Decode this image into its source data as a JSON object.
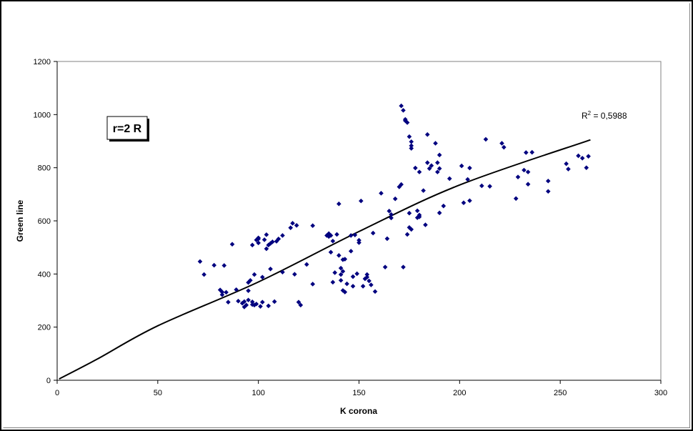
{
  "chart_data": {
    "type": "scatter",
    "title": "",
    "xlabel": "K corona",
    "ylabel": "Green line",
    "xlim": [
      0,
      300
    ],
    "ylim": [
      0,
      1200
    ],
    "xticks": [
      0,
      50,
      100,
      150,
      200,
      250,
      300
    ],
    "yticks": [
      0,
      200,
      400,
      600,
      800,
      1000,
      1200
    ],
    "xtick_labels": [
      "0",
      "50",
      "100",
      "150",
      "200",
      "250",
      "300"
    ],
    "ytick_labels": [
      "0",
      "200",
      "400",
      "600",
      "800",
      "1000",
      "1200"
    ],
    "grid": false,
    "annotation": "r=2 R",
    "trendline": {
      "type": "polynomial",
      "r2_label": "R",
      "r2_sup": "2",
      "r2_value": " = 0,5988",
      "points": [
        [
          1,
          5
        ],
        [
          20,
          80
        ],
        [
          50,
          205
        ],
        [
          100,
          370
        ],
        [
          150,
          560
        ],
        [
          200,
          735
        ],
        [
          265,
          905
        ]
      ]
    },
    "marker_color": "#00007f",
    "series": [
      {
        "points": [
          [
            71,
            447
          ],
          [
            73,
            398
          ],
          [
            78,
            433
          ],
          [
            83,
            432
          ],
          [
            81,
            340
          ],
          [
            82,
            322
          ],
          [
            82,
            332
          ],
          [
            84,
            331
          ],
          [
            85,
            294
          ],
          [
            87,
            512
          ],
          [
            89,
            341
          ],
          [
            90,
            298
          ],
          [
            92,
            290
          ],
          [
            93,
            296
          ],
          [
            93,
            276
          ],
          [
            94,
            283
          ],
          [
            95,
            337
          ],
          [
            95,
            302
          ],
          [
            95,
            368
          ],
          [
            96,
            376
          ],
          [
            97,
            285
          ],
          [
            97,
            295
          ],
          [
            97,
            509
          ],
          [
            98,
            283
          ],
          [
            98,
            398
          ],
          [
            99,
            287
          ],
          [
            99,
            528
          ],
          [
            100,
            517
          ],
          [
            100,
            536
          ],
          [
            100,
            532
          ],
          [
            101,
            278
          ],
          [
            102,
            294
          ],
          [
            102,
            388
          ],
          [
            103,
            529
          ],
          [
            104,
            548
          ],
          [
            104,
            495
          ],
          [
            105,
            509
          ],
          [
            105,
            280
          ],
          [
            106,
            419
          ],
          [
            106,
            515
          ],
          [
            107,
            521
          ],
          [
            108,
            296
          ],
          [
            109,
            523
          ],
          [
            110,
            532
          ],
          [
            112,
            407
          ],
          [
            112,
            545
          ],
          [
            116,
            574
          ],
          [
            117,
            591
          ],
          [
            118,
            399
          ],
          [
            119,
            583
          ],
          [
            120,
            294
          ],
          [
            121,
            283
          ],
          [
            124,
            436
          ],
          [
            127,
            362
          ],
          [
            127,
            582
          ],
          [
            134,
            545
          ],
          [
            135,
            552
          ],
          [
            135,
            541
          ],
          [
            136,
            482
          ],
          [
            136,
            545
          ],
          [
            137,
            524
          ],
          [
            137,
            369
          ],
          [
            138,
            405
          ],
          [
            139,
            549
          ],
          [
            140,
            664
          ],
          [
            140,
            470
          ],
          [
            141,
            376
          ],
          [
            141,
            398
          ],
          [
            141,
            422
          ],
          [
            142,
            410
          ],
          [
            142,
            454
          ],
          [
            142,
            338
          ],
          [
            143,
            332
          ],
          [
            143,
            456
          ],
          [
            144,
            363
          ],
          [
            146,
            545
          ],
          [
            146,
            486
          ],
          [
            147,
            390
          ],
          [
            147,
            354
          ],
          [
            148,
            547
          ],
          [
            149,
            401
          ],
          [
            150,
            518
          ],
          [
            150,
            527
          ],
          [
            151,
            675
          ],
          [
            152,
            354
          ],
          [
            153,
            382
          ],
          [
            154,
            398
          ],
          [
            154,
            388
          ],
          [
            155,
            374
          ],
          [
            156,
            359
          ],
          [
            157,
            554
          ],
          [
            158,
            334
          ],
          [
            161,
            704
          ],
          [
            163,
            426
          ],
          [
            164,
            533
          ],
          [
            165,
            637
          ],
          [
            166,
            611
          ],
          [
            166,
            624
          ],
          [
            168,
            683
          ],
          [
            170,
            728
          ],
          [
            171,
            737
          ],
          [
            171,
            1033
          ],
          [
            172,
            1016
          ],
          [
            172,
            426
          ],
          [
            173,
            982
          ],
          [
            173,
            977
          ],
          [
            174,
            970
          ],
          [
            174,
            549
          ],
          [
            175,
            575
          ],
          [
            175,
            629
          ],
          [
            175,
            917
          ],
          [
            176,
            568
          ],
          [
            176,
            898
          ],
          [
            176,
            883
          ],
          [
            176,
            873
          ],
          [
            178,
            799
          ],
          [
            179,
            612
          ],
          [
            179,
            638
          ],
          [
            180,
            615
          ],
          [
            180,
            622
          ],
          [
            180,
            784
          ],
          [
            182,
            714
          ],
          [
            183,
            585
          ],
          [
            184,
            925
          ],
          [
            184,
            819
          ],
          [
            185,
            797
          ],
          [
            186,
            808
          ],
          [
            188,
            892
          ],
          [
            189,
            819
          ],
          [
            189,
            784
          ],
          [
            190,
            848
          ],
          [
            190,
            630
          ],
          [
            190,
            797
          ],
          [
            192,
            656
          ],
          [
            195,
            759
          ],
          [
            201,
            807
          ],
          [
            202,
            668
          ],
          [
            204,
            756
          ],
          [
            205,
            676
          ],
          [
            205,
            799
          ],
          [
            211,
            732
          ],
          [
            213,
            907
          ],
          [
            215,
            730
          ],
          [
            221,
            892
          ],
          [
            222,
            877
          ],
          [
            228,
            684
          ],
          [
            229,
            765
          ],
          [
            232,
            791
          ],
          [
            233,
            857
          ],
          [
            234,
            784
          ],
          [
            234,
            738
          ],
          [
            236,
            858
          ],
          [
            244,
            750
          ],
          [
            244,
            711
          ],
          [
            253,
            815
          ],
          [
            254,
            795
          ],
          [
            259,
            845
          ],
          [
            261,
            836
          ],
          [
            263,
            800
          ],
          [
            264,
            843
          ]
        ]
      }
    ]
  }
}
